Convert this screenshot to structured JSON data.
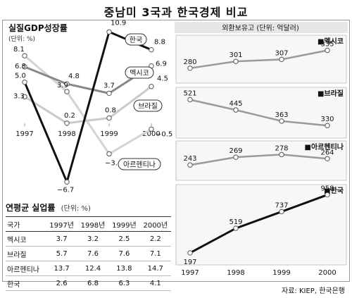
{
  "title": "중남미 3국과 한국경제 비교",
  "source": "자료: KIEP, 한국은행",
  "chart_data": [
    {
      "type": "line",
      "title": "실질GDP성장률",
      "unit_note": "(단위: %)",
      "x": [
        "1997",
        "1998",
        "1999",
        "2000"
      ],
      "series": [
        {
          "name": "한국",
          "values": [
            5.0,
            -6.7,
            10.9,
            8.8
          ],
          "color": "#111111"
        },
        {
          "name": "멕시코",
          "values": [
            6.8,
            4.8,
            3.7,
            6.9
          ],
          "color": "#888888"
        },
        {
          "name": "브라질",
          "values": [
            3.3,
            0.2,
            0.8,
            4.5
          ],
          "color": "#bbbbbb"
        },
        {
          "name": "아르헨티나",
          "values": [
            8.1,
            3.9,
            -3.4,
            -0.5
          ],
          "color": "#cccccc"
        }
      ],
      "value_labels": [
        [
          "5.0",
          "−6.7",
          "10.9",
          "8.8"
        ],
        [
          "6.8",
          "4.8",
          "3.7",
          "6.9"
        ],
        [
          "3.3",
          "0.2",
          "0.8",
          "4.5"
        ],
        [
          "8.1",
          "3.9",
          "−3.4",
          "−0.5"
        ]
      ],
      "ylim": [
        -7.5,
        11.5
      ]
    },
    {
      "type": "line",
      "title": "외환보유고",
      "unit_note": "(단위: 억달러)",
      "x": [
        "1997",
        "1998",
        "1999",
        "2000"
      ],
      "series": [
        {
          "name": "멕시코",
          "values": [
            280,
            301,
            307,
            335
          ]
        },
        {
          "name": "브라질",
          "values": [
            521,
            445,
            363,
            330
          ]
        },
        {
          "name": "아르헨티나",
          "values": [
            243,
            269,
            278,
            264
          ]
        },
        {
          "name": "한국",
          "values": [
            197,
            519,
            737,
            958
          ]
        }
      ]
    },
    {
      "type": "table",
      "title": "연평균 실업률",
      "unit_note": "(단위: %)",
      "columns": [
        "국가",
        "1997년",
        "1998년",
        "1999년",
        "2000년"
      ],
      "rows": [
        [
          "멕시코",
          "3.7",
          "3.2",
          "2.5",
          "2.2"
        ],
        [
          "브라질",
          "5.7",
          "7.6",
          "7.6",
          "7.1"
        ],
        [
          "아르헨티나",
          "13.7",
          "12.4",
          "13.8",
          "14.7"
        ],
        [
          "한국",
          "2.6",
          "6.8",
          "6.3",
          "4.1"
        ]
      ]
    }
  ]
}
